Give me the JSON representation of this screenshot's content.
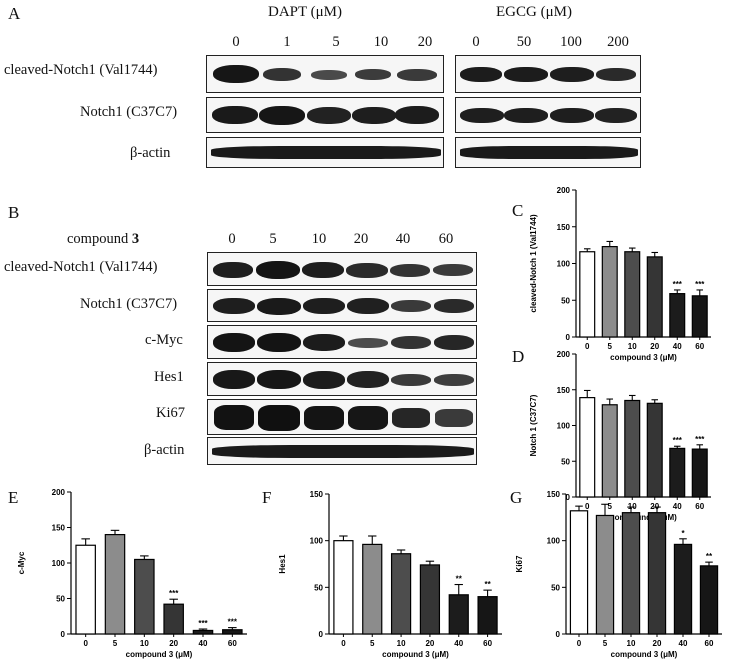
{
  "panel_a": {
    "letter": "A",
    "dapt_title": "DAPT (μM)",
    "egcg_title": "EGCG (μM)",
    "dapt_doses": [
      "0",
      "1",
      "5",
      "10",
      "20"
    ],
    "egcg_doses": [
      "0",
      "50",
      "100",
      "200"
    ],
    "row_labels": [
      "cleaved-Notch1 (Val1744)",
      "Notch1 (C37C7)",
      "β-actin"
    ]
  },
  "panel_b": {
    "letter": "B",
    "compound_prefix": "compound ",
    "compound_number": "3",
    "doses": [
      "0",
      "5",
      "10",
      "20",
      "40",
      "60"
    ],
    "row_labels": [
      "cleaved-Notch1 (Val1744)",
      "Notch1 (C37C7)",
      "c-Myc",
      "Hes1",
      "Ki67",
      "β-actin"
    ]
  },
  "chart_data": [
    {
      "panel": "C",
      "type": "bar",
      "ylabel": "cleaved-Notch 1 (Val1744)",
      "xlabel": "compound 3 (μM)",
      "categories": [
        "0",
        "5",
        "10",
        "20",
        "40",
        "60"
      ],
      "yticks": [
        "0",
        "50",
        "100",
        "150",
        "200"
      ],
      "ylim": [
        0,
        200
      ],
      "values": [
        116,
        123,
        116,
        109,
        59,
        56
      ],
      "errors": [
        4,
        7,
        5,
        6,
        5,
        8
      ],
      "significance": [
        "",
        "",
        "",
        "",
        "***",
        "***"
      ]
    },
    {
      "panel": "D",
      "type": "bar",
      "ylabel": "Notch 1 (C37C7)",
      "xlabel": "compound 3 (μM)",
      "categories": [
        "0",
        "5",
        "10",
        "20",
        "40",
        "60"
      ],
      "yticks": [
        "0",
        "50",
        "100",
        "150",
        "200"
      ],
      "ylim": [
        0,
        200
      ],
      "values": [
        139,
        129,
        135,
        131,
        68,
        67
      ],
      "errors": [
        10,
        8,
        7,
        5,
        3,
        6
      ],
      "significance": [
        "",
        "",
        "",
        "",
        "***",
        "***"
      ]
    },
    {
      "panel": "E",
      "type": "bar",
      "ylabel": "c-Myc",
      "xlabel": "compound 3 (μM)",
      "categories": [
        "0",
        "5",
        "10",
        "20",
        "40",
        "60"
      ],
      "yticks": [
        "0",
        "50",
        "100",
        "150",
        "200"
      ],
      "ylim": [
        0,
        200
      ],
      "values": [
        125,
        140,
        105,
        42,
        5,
        6
      ],
      "errors": [
        9,
        6,
        5,
        7,
        2,
        3
      ],
      "significance": [
        "",
        "",
        "",
        "***",
        "***",
        "***"
      ]
    },
    {
      "panel": "F",
      "type": "bar",
      "ylabel": "Hes1",
      "xlabel": "compound 3 (μM)",
      "categories": [
        "0",
        "5",
        "10",
        "20",
        "40",
        "60"
      ],
      "yticks": [
        "0",
        "50",
        "100",
        "150"
      ],
      "ylim": [
        0,
        150
      ],
      "values": [
        100,
        96,
        86,
        74,
        42,
        40
      ],
      "errors": [
        5,
        9,
        4,
        4,
        11,
        7
      ],
      "significance": [
        "",
        "",
        "",
        "",
        "**",
        "**"
      ]
    },
    {
      "panel": "G",
      "type": "bar",
      "ylabel": "Ki67",
      "xlabel": "compound 3 (μM)",
      "categories": [
        "0",
        "5",
        "10",
        "20",
        "40",
        "60"
      ],
      "yticks": [
        "0",
        "50",
        "100",
        "150"
      ],
      "ylim": [
        0,
        150
      ],
      "values": [
        132,
        127,
        130,
        130,
        96,
        73
      ],
      "errors": [
        5,
        12,
        6,
        6,
        6,
        4
      ],
      "significance": [
        "",
        "",
        "",
        "",
        "*",
        "**"
      ]
    }
  ]
}
